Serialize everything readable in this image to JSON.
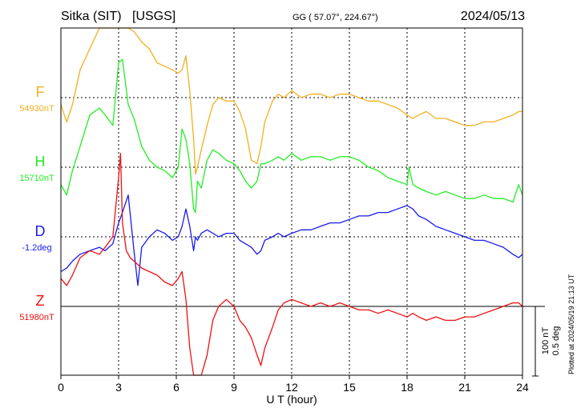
{
  "header": {
    "station": "Sitka (SIT)",
    "source": "[USGS]",
    "coords": "GG ( 57.07°, 224.67°)",
    "date": "2024/05/13"
  },
  "footer": {
    "plotted_at": "Plotted at 2024/05/19 21:13 UT"
  },
  "chart_data": {
    "type": "line",
    "title": "Sitka (SIT) [USGS]",
    "xlabel": "U T (hour)",
    "xlim": [
      0,
      24
    ],
    "x_ticks": [
      "0",
      "3",
      "6",
      "9",
      "12",
      "15",
      "18",
      "21",
      "24"
    ],
    "grid": true,
    "scale_bar": {
      "nT": "100 nT",
      "deg": "0.5 deg",
      "value_nT": 100
    },
    "series": [
      {
        "name": "F",
        "baseline": "54930nT",
        "color": "#f0b020",
        "x": [
          0,
          0.3,
          0.6,
          1.0,
          1.5,
          2.0,
          2.3,
          2.7,
          3.0,
          3.2,
          3.5,
          3.8,
          4.2,
          4.6,
          5.0,
          5.4,
          5.8,
          6.1,
          6.3,
          6.5,
          6.7,
          6.9,
          7.0,
          7.1,
          7.3,
          7.6,
          7.9,
          8.2,
          8.6,
          9.0,
          9.3,
          9.6,
          9.9,
          10.2,
          10.4,
          10.6,
          11.0,
          11.3,
          11.6,
          12.0,
          12.5,
          13.0,
          13.5,
          14.0,
          14.5,
          15.0,
          15.5,
          16.0,
          16.5,
          17.0,
          17.5,
          18.0,
          18.3,
          18.6,
          19.0,
          19.5,
          20.0,
          20.5,
          21.0,
          21.5,
          22.0,
          22.5,
          23.0,
          23.5,
          23.8,
          24.0
        ],
        "y": [
          -10,
          -35,
          -10,
          40,
          70,
          100,
          130,
          120,
          130,
          125,
          110,
          95,
          80,
          70,
          50,
          45,
          40,
          35,
          40,
          60,
          10,
          -60,
          -110,
          -100,
          -75,
          -40,
          -10,
          0,
          -5,
          -5,
          -20,
          -45,
          -90,
          -95,
          -70,
          -35,
          -5,
          5,
          0,
          10,
          0,
          5,
          5,
          0,
          5,
          5,
          0,
          -5,
          -5,
          -10,
          -15,
          -25,
          -30,
          -25,
          -20,
          -30,
          -30,
          -35,
          -40,
          -40,
          -35,
          -35,
          -30,
          -25,
          -20,
          -20
        ]
      },
      {
        "name": "H",
        "baseline": "15710nT",
        "color": "#22ee22",
        "x": [
          0,
          0.3,
          0.6,
          1.0,
          1.5,
          2.0,
          2.3,
          2.7,
          3.0,
          3.2,
          3.5,
          3.8,
          4.2,
          4.6,
          5.0,
          5.4,
          5.8,
          6.1,
          6.3,
          6.5,
          6.7,
          6.9,
          7.0,
          7.1,
          7.3,
          7.6,
          7.9,
          8.2,
          8.6,
          9.0,
          9.3,
          9.6,
          9.9,
          10.2,
          10.4,
          10.6,
          11.0,
          11.3,
          11.6,
          12.0,
          12.5,
          13.0,
          13.5,
          14.0,
          14.5,
          15.0,
          15.5,
          16.0,
          16.5,
          17.0,
          17.5,
          18.0,
          18.1,
          18.3,
          18.6,
          19.0,
          19.5,
          20.0,
          20.5,
          21.0,
          21.5,
          22.0,
          22.5,
          23.0,
          23.5,
          23.8,
          24.0
        ],
        "y": [
          -25,
          -40,
          -5,
          30,
          75,
          85,
          75,
          60,
          150,
          155,
          90,
          70,
          30,
          10,
          0,
          -5,
          -15,
          0,
          55,
          40,
          5,
          -60,
          -65,
          -20,
          -30,
          10,
          25,
          20,
          10,
          5,
          -5,
          -20,
          -30,
          -20,
          5,
          5,
          10,
          15,
          10,
          20,
          10,
          15,
          15,
          10,
          15,
          15,
          10,
          0,
          -5,
          -15,
          -20,
          -25,
          0,
          -25,
          -30,
          -35,
          -40,
          -35,
          -40,
          -45,
          -45,
          -40,
          -45,
          -45,
          -50,
          -25,
          -40
        ]
      },
      {
        "name": "D",
        "baseline": "-1.2deg",
        "color": "#1a1aee",
        "x": [
          0,
          0.3,
          0.6,
          1.0,
          1.5,
          2.0,
          2.3,
          2.7,
          3.0,
          3.2,
          3.5,
          3.8,
          4.0,
          4.2,
          4.6,
          5.0,
          5.4,
          5.8,
          6.1,
          6.3,
          6.5,
          6.7,
          6.9,
          7.0,
          7.1,
          7.3,
          7.6,
          7.9,
          8.2,
          8.6,
          9.0,
          9.3,
          9.6,
          9.9,
          10.2,
          10.4,
          10.6,
          11.0,
          11.3,
          11.6,
          12.0,
          12.5,
          13.0,
          13.5,
          14.0,
          14.5,
          15.0,
          15.5,
          16.0,
          16.5,
          17.0,
          17.5,
          18.0,
          18.3,
          18.6,
          19.0,
          19.5,
          20.0,
          20.5,
          21.0,
          21.5,
          22.0,
          22.5,
          23.0,
          23.5,
          23.8,
          24.0
        ],
        "y": [
          -50,
          -45,
          -35,
          -25,
          -20,
          -15,
          -20,
          -10,
          20,
          35,
          60,
          -20,
          -70,
          -15,
          0,
          10,
          5,
          -5,
          0,
          15,
          40,
          15,
          -20,
          0,
          -5,
          5,
          10,
          5,
          0,
          5,
          5,
          -5,
          -10,
          -15,
          -25,
          -20,
          -5,
          0,
          5,
          0,
          5,
          10,
          10,
          15,
          20,
          20,
          25,
          30,
          30,
          35,
          35,
          40,
          45,
          40,
          30,
          25,
          15,
          10,
          5,
          0,
          -5,
          -5,
          -10,
          -15,
          -25,
          -30,
          -25
        ]
      },
      {
        "name": "Z",
        "baseline": "51980nT",
        "color": "#ee1111",
        "x": [
          0,
          0.3,
          0.6,
          1.0,
          1.5,
          2.0,
          2.3,
          2.7,
          3.0,
          3.1,
          3.2,
          3.4,
          3.6,
          3.8,
          4.2,
          4.6,
          5.0,
          5.4,
          5.8,
          6.1,
          6.3,
          6.5,
          6.7,
          6.9,
          7.0,
          7.1,
          7.3,
          7.6,
          7.9,
          8.2,
          8.6,
          9.0,
          9.3,
          9.6,
          9.9,
          10.2,
          10.4,
          10.6,
          11.0,
          11.3,
          11.6,
          12.0,
          12.5,
          13.0,
          13.5,
          14.0,
          14.5,
          15.0,
          15.5,
          16.0,
          16.5,
          17.0,
          17.5,
          18.0,
          18.3,
          18.6,
          19.0,
          19.5,
          20.0,
          20.5,
          21.0,
          21.5,
          22.0,
          22.5,
          23.0,
          23.5,
          23.8,
          24.0
        ],
        "y": [
          40,
          30,
          45,
          70,
          80,
          75,
          85,
          100,
          185,
          220,
          120,
          80,
          70,
          65,
          55,
          50,
          45,
          35,
          30,
          40,
          50,
          10,
          -60,
          -120,
          -140,
          -130,
          -110,
          -70,
          -20,
          0,
          10,
          0,
          -20,
          -30,
          -45,
          -70,
          -85,
          -60,
          -30,
          -5,
          5,
          10,
          5,
          0,
          5,
          0,
          5,
          0,
          -5,
          -5,
          -10,
          -5,
          -10,
          -15,
          -10,
          -15,
          -20,
          -15,
          -20,
          -20,
          -15,
          -15,
          -10,
          -5,
          0,
          5,
          5,
          0
        ]
      }
    ]
  }
}
